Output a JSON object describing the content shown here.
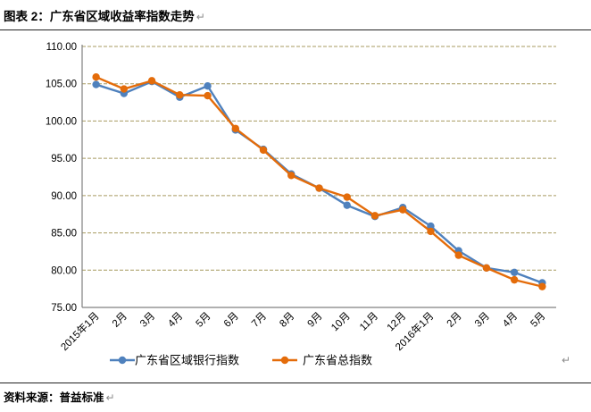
{
  "header": {
    "title": "图表 2：广东省区域收益率指数走势",
    "return_mark": "↵"
  },
  "footer": {
    "source_label": "资料来源：普益标准",
    "return_mark": "↵"
  },
  "chart_data": {
    "type": "line",
    "title": "",
    "xlabel": "",
    "ylabel": "",
    "ylim": [
      75,
      110
    ],
    "ytick_step": 5,
    "ytick_decimals": 2,
    "grid": "horizontal-dashed",
    "gridline_color": "#a79b61",
    "axis_color": "#808080",
    "legend_position": "bottom",
    "stray_return_mark": "↵",
    "categories": [
      "2015年1月",
      "2月",
      "3月",
      "4月",
      "5月",
      "6月",
      "7月",
      "8月",
      "9月",
      "10月",
      "11月",
      "12月",
      "2016年1月",
      "2月",
      "3月",
      "4月",
      "5月"
    ],
    "series": [
      {
        "name": "广东省区域银行指数",
        "color": "#4F81BD",
        "values": [
          104.9,
          103.7,
          105.3,
          103.2,
          104.7,
          98.8,
          96.2,
          92.9,
          91.0,
          88.7,
          87.2,
          88.4,
          85.9,
          82.6,
          80.3,
          79.7,
          78.3
        ]
      },
      {
        "name": "广东省总指数",
        "color": "#E46C0A",
        "values": [
          105.9,
          104.3,
          105.4,
          103.5,
          103.4,
          99.0,
          96.1,
          92.7,
          91.0,
          89.8,
          87.3,
          88.1,
          85.2,
          82.0,
          80.3,
          78.7,
          77.8
        ]
      }
    ]
  }
}
